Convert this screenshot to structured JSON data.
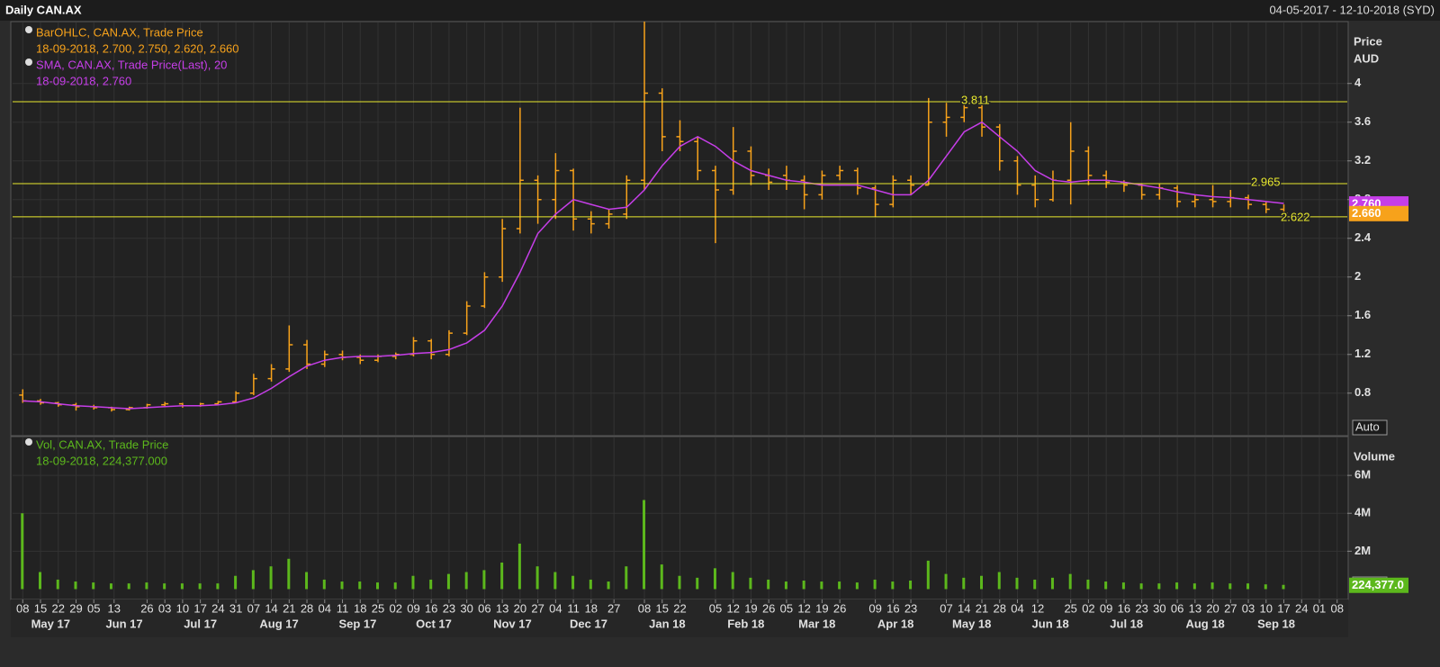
{
  "header": {
    "title": "Daily CAN.AX",
    "date_range": "04-05-2017 - 12-10-2018 (SYD)"
  },
  "chart_data": [
    {
      "type": "ohlc",
      "ylabel": "Price",
      "yunit": "AUD",
      "button": "Auto",
      "xlim": [
        "2017-05-04",
        "2018-10-12"
      ],
      "ylim": [
        0.37,
        4.63
      ],
      "yticks": [
        0.8,
        1.2,
        1.6,
        2,
        2.4,
        2.8,
        3.2,
        3.6,
        4
      ],
      "grid": true,
      "x": [
        "2017-05-08",
        "2017-05-15",
        "2017-05-22",
        "2017-05-29",
        "2017-06-05",
        "2017-06-12",
        "2017-06-19",
        "2017-06-26",
        "2017-07-03",
        "2017-07-10",
        "2017-07-17",
        "2017-07-24",
        "2017-07-31",
        "2017-08-07",
        "2017-08-14",
        "2017-08-21",
        "2017-08-28",
        "2017-09-04",
        "2017-09-11",
        "2017-09-18",
        "2017-09-25",
        "2017-10-02",
        "2017-10-09",
        "2017-10-16",
        "2017-10-23",
        "2017-10-30",
        "2017-11-06",
        "2017-11-13",
        "2017-11-20",
        "2017-11-27",
        "2017-12-04",
        "2017-12-11",
        "2017-12-18",
        "2017-12-25",
        "2018-01-01",
        "2018-01-08",
        "2018-01-15",
        "2018-01-22",
        "2018-01-29",
        "2018-02-05",
        "2018-02-12",
        "2018-02-19",
        "2018-02-26",
        "2018-03-05",
        "2018-03-12",
        "2018-03-19",
        "2018-03-26",
        "2018-04-02",
        "2018-04-09",
        "2018-04-16",
        "2018-04-23",
        "2018-04-30",
        "2018-05-07",
        "2018-05-14",
        "2018-05-21",
        "2018-05-28",
        "2018-06-04",
        "2018-06-11",
        "2018-06-18",
        "2018-06-25",
        "2018-07-02",
        "2018-07-09",
        "2018-07-16",
        "2018-07-23",
        "2018-07-30",
        "2018-08-06",
        "2018-08-13",
        "2018-08-20",
        "2018-08-27",
        "2018-09-03",
        "2018-09-10",
        "2018-09-17"
      ],
      "series": [
        {
          "name": "BarOHLC, CAN.AX, Trade Price",
          "info": "18-09-2018, 2.700, 2.750, 2.620, 2.660",
          "color": "#f7a21b",
          "open": [
            0.78,
            0.72,
            0.7,
            0.68,
            0.66,
            0.65,
            0.63,
            0.65,
            0.68,
            0.69,
            0.67,
            0.69,
            0.71,
            0.8,
            0.95,
            1.05,
            1.3,
            1.1,
            1.2,
            1.17,
            1.14,
            1.18,
            1.2,
            1.34,
            1.2,
            1.42,
            1.7,
            2.0,
            2.5,
            3.0,
            2.8,
            3.1,
            2.6,
            2.55,
            2.65,
            3.0,
            3.9,
            3.45,
            3.4,
            3.1,
            2.9,
            3.3,
            3.05,
            3.05,
            3.0,
            2.85,
            3.05,
            3.1,
            2.92,
            2.75,
            3.0,
            2.95,
            3.6,
            3.65,
            3.75,
            3.55,
            3.2,
            2.95,
            2.8,
            3.0,
            3.3,
            3.05,
            2.98,
            2.95,
            2.85,
            2.92,
            2.78,
            2.8,
            2.78,
            2.82,
            2.75,
            2.7
          ],
          "high": [
            0.84,
            0.74,
            0.71,
            0.7,
            0.68,
            0.66,
            0.66,
            0.69,
            0.71,
            0.7,
            0.7,
            0.72,
            0.82,
            1.0,
            1.1,
            1.5,
            1.35,
            1.24,
            1.24,
            1.2,
            1.2,
            1.22,
            1.38,
            1.36,
            1.45,
            1.75,
            2.05,
            2.6,
            3.75,
            3.05,
            3.28,
            3.12,
            2.68,
            2.7,
            3.05,
            4.7,
            3.95,
            3.62,
            3.45,
            3.15,
            3.55,
            3.35,
            3.12,
            3.15,
            3.05,
            3.1,
            3.15,
            3.13,
            2.95,
            3.05,
            3.05,
            3.85,
            3.8,
            3.81,
            3.8,
            3.58,
            3.25,
            3.05,
            3.1,
            3.6,
            3.35,
            3.1,
            3.0,
            2.97,
            2.96,
            2.95,
            2.85,
            2.95,
            2.9,
            2.85,
            2.78,
            2.75
          ],
          "low": [
            0.7,
            0.68,
            0.66,
            0.62,
            0.63,
            0.61,
            0.62,
            0.64,
            0.66,
            0.65,
            0.66,
            0.68,
            0.7,
            0.78,
            0.92,
            1.02,
            1.05,
            1.07,
            1.14,
            1.1,
            1.12,
            1.15,
            1.18,
            1.15,
            1.18,
            1.4,
            1.68,
            1.95,
            2.45,
            2.55,
            2.6,
            2.48,
            2.45,
            2.5,
            2.6,
            2.9,
            3.3,
            3.3,
            3.0,
            2.35,
            2.85,
            2.95,
            2.9,
            2.9,
            2.7,
            2.8,
            3.0,
            2.85,
            2.62,
            2.72,
            2.85,
            2.95,
            3.45,
            3.6,
            3.45,
            3.1,
            2.85,
            2.72,
            2.78,
            2.75,
            2.95,
            2.92,
            2.88,
            2.8,
            2.8,
            2.72,
            2.72,
            2.72,
            2.72,
            2.7,
            2.66,
            2.62
          ],
          "close": [
            0.72,
            0.7,
            0.68,
            0.66,
            0.65,
            0.63,
            0.65,
            0.68,
            0.69,
            0.67,
            0.69,
            0.71,
            0.8,
            0.95,
            1.05,
            1.3,
            1.1,
            1.2,
            1.17,
            1.14,
            1.18,
            1.2,
            1.34,
            1.2,
            1.42,
            1.7,
            2.0,
            2.5,
            3.0,
            2.8,
            3.1,
            2.6,
            2.55,
            2.65,
            3.0,
            3.9,
            3.45,
            3.4,
            3.1,
            2.9,
            3.3,
            3.05,
            2.98,
            3.0,
            2.85,
            3.05,
            3.1,
            2.92,
            2.75,
            3.0,
            2.95,
            3.6,
            3.65,
            3.75,
            3.55,
            3.2,
            2.95,
            2.8,
            3.0,
            3.3,
            3.05,
            2.98,
            2.95,
            2.85,
            2.92,
            2.78,
            2.8,
            2.78,
            2.82,
            2.75,
            2.7,
            2.66
          ]
        },
        {
          "name": "SMA, CAN.AX, Trade Price(Last),  20",
          "info": "18-09-2018, 2.760",
          "color": "#c63ee8",
          "values": [
            0.72,
            0.71,
            0.69,
            0.67,
            0.66,
            0.65,
            0.64,
            0.65,
            0.66,
            0.67,
            0.67,
            0.68,
            0.7,
            0.75,
            0.85,
            0.97,
            1.08,
            1.14,
            1.17,
            1.18,
            1.18,
            1.19,
            1.21,
            1.22,
            1.25,
            1.32,
            1.45,
            1.7,
            2.05,
            2.45,
            2.65,
            2.8,
            2.75,
            2.7,
            2.72,
            2.9,
            3.15,
            3.35,
            3.45,
            3.35,
            3.2,
            3.1,
            3.05,
            3.0,
            2.98,
            2.95,
            2.95,
            2.95,
            2.9,
            2.85,
            2.85,
            3.0,
            3.25,
            3.5,
            3.6,
            3.45,
            3.3,
            3.1,
            3.0,
            2.98,
            3.0,
            3.0,
            2.98,
            2.95,
            2.92,
            2.88,
            2.85,
            2.83,
            2.82,
            2.8,
            2.78,
            2.76
          ]
        }
      ],
      "levels": [
        3.811,
        2.965,
        2.622
      ],
      "level_color": "#e8e82e",
      "tags": [
        {
          "value": 2.76,
          "label": "2.760",
          "color": "#c63ee8"
        },
        {
          "value": 2.66,
          "label": "2.660",
          "color": "#f7a21b"
        }
      ]
    },
    {
      "type": "bar",
      "ylabel": "Volume",
      "button": "Auto",
      "xlim": [
        "2017-05-04",
        "2018-10-12"
      ],
      "ylim": [
        -500000,
        8000000
      ],
      "yticks": [
        {
          "value": 2000000,
          "label": "2M"
        },
        {
          "value": 4000000,
          "label": "4M"
        },
        {
          "value": 6000000,
          "label": "6M"
        }
      ],
      "grid": true,
      "x": [
        "2017-05-08",
        "2017-05-15",
        "2017-05-22",
        "2017-05-29",
        "2017-06-05",
        "2017-06-12",
        "2017-06-19",
        "2017-06-26",
        "2017-07-03",
        "2017-07-10",
        "2017-07-17",
        "2017-07-24",
        "2017-07-31",
        "2017-08-07",
        "2017-08-14",
        "2017-08-21",
        "2017-08-28",
        "2017-09-04",
        "2017-09-11",
        "2017-09-18",
        "2017-09-25",
        "2017-10-02",
        "2017-10-09",
        "2017-10-16",
        "2017-10-23",
        "2017-10-30",
        "2017-11-06",
        "2017-11-13",
        "2017-11-20",
        "2017-11-27",
        "2017-12-04",
        "2017-12-11",
        "2017-12-18",
        "2017-12-25",
        "2018-01-01",
        "2018-01-08",
        "2018-01-15",
        "2018-01-22",
        "2018-01-29",
        "2018-02-05",
        "2018-02-12",
        "2018-02-19",
        "2018-02-26",
        "2018-03-05",
        "2018-03-12",
        "2018-03-19",
        "2018-03-26",
        "2018-04-02",
        "2018-04-09",
        "2018-04-16",
        "2018-04-23",
        "2018-04-30",
        "2018-05-07",
        "2018-05-14",
        "2018-05-21",
        "2018-05-28",
        "2018-06-04",
        "2018-06-11",
        "2018-06-18",
        "2018-06-25",
        "2018-07-02",
        "2018-07-09",
        "2018-07-16",
        "2018-07-23",
        "2018-07-30",
        "2018-08-06",
        "2018-08-13",
        "2018-08-20",
        "2018-08-27",
        "2018-09-03",
        "2018-09-10",
        "2018-09-17"
      ],
      "series": [
        {
          "name": "Vol, CAN.AX, Trade Price",
          "info": "18-09-2018, 224,377.000",
          "color": "#5cb81c",
          "values": [
            4000000,
            900000,
            500000,
            400000,
            350000,
            300000,
            300000,
            350000,
            300000,
            300000,
            300000,
            300000,
            700000,
            1000000,
            1200000,
            1600000,
            900000,
            500000,
            400000,
            400000,
            350000,
            350000,
            700000,
            500000,
            800000,
            900000,
            1000000,
            1400000,
            2400000,
            1200000,
            900000,
            700000,
            500000,
            400000,
            1200000,
            4700000,
            1300000,
            700000,
            600000,
            1100000,
            900000,
            600000,
            500000,
            400000,
            450000,
            400000,
            400000,
            350000,
            500000,
            400000,
            450000,
            1500000,
            800000,
            600000,
            700000,
            900000,
            600000,
            500000,
            600000,
            800000,
            500000,
            400000,
            350000,
            300000,
            300000,
            350000,
            300000,
            350000,
            300000,
            300000,
            250000,
            224377
          ]
        }
      ],
      "tags": [
        {
          "value": 224377,
          "label": "224,377.0",
          "color": "#5cb81c"
        }
      ],
      "xticks": [
        {
          "value": "2017-05-08",
          "label": "08"
        },
        {
          "value": "2017-05-15",
          "label": "15"
        },
        {
          "value": "2017-05-22",
          "label": "22"
        },
        {
          "value": "2017-05-29",
          "label": "29"
        },
        {
          "value": "2017-06-05",
          "label": "05"
        },
        {
          "value": "2017-06-13",
          "label": "13"
        },
        {
          "value": "2017-06-26",
          "label": "26"
        },
        {
          "value": "2017-07-03",
          "label": "03"
        },
        {
          "value": "2017-07-10",
          "label": "10"
        },
        {
          "value": "2017-07-17",
          "label": "17"
        },
        {
          "value": "2017-07-24",
          "label": "24"
        },
        {
          "value": "2017-07-31",
          "label": "31"
        },
        {
          "value": "2017-08-07",
          "label": "07"
        },
        {
          "value": "2017-08-14",
          "label": "14"
        },
        {
          "value": "2017-08-21",
          "label": "21"
        },
        {
          "value": "2017-08-28",
          "label": "28"
        },
        {
          "value": "2017-09-04",
          "label": "04"
        },
        {
          "value": "2017-09-11",
          "label": "11"
        },
        {
          "value": "2017-09-18",
          "label": "18"
        },
        {
          "value": "2017-09-25",
          "label": "25"
        },
        {
          "value": "2017-10-02",
          "label": "02"
        },
        {
          "value": "2017-10-09",
          "label": "09"
        },
        {
          "value": "2017-10-16",
          "label": "16"
        },
        {
          "value": "2017-10-23",
          "label": "23"
        },
        {
          "value": "2017-10-30",
          "label": "30"
        },
        {
          "value": "2017-11-06",
          "label": "06"
        },
        {
          "value": "2017-11-13",
          "label": "13"
        },
        {
          "value": "2017-11-20",
          "label": "20"
        },
        {
          "value": "2017-11-27",
          "label": "27"
        },
        {
          "value": "2017-12-04",
          "label": "04"
        },
        {
          "value": "2017-12-11",
          "label": "11"
        },
        {
          "value": "2017-12-18",
          "label": "18"
        },
        {
          "value": "2017-12-27",
          "label": "27"
        },
        {
          "value": "2018-01-08",
          "label": "08"
        },
        {
          "value": "2018-01-15",
          "label": "15"
        },
        {
          "value": "2018-01-22",
          "label": "22"
        },
        {
          "value": "2018-02-05",
          "label": "05"
        },
        {
          "value": "2018-02-12",
          "label": "12"
        },
        {
          "value": "2018-02-19",
          "label": "19"
        },
        {
          "value": "2018-02-26",
          "label": "26"
        },
        {
          "value": "2018-03-05",
          "label": "05"
        },
        {
          "value": "2018-03-12",
          "label": "12"
        },
        {
          "value": "2018-03-19",
          "label": "19"
        },
        {
          "value": "2018-03-26",
          "label": "26"
        },
        {
          "value": "2018-04-09",
          "label": "09"
        },
        {
          "value": "2018-04-16",
          "label": "16"
        },
        {
          "value": "2018-04-23",
          "label": "23"
        },
        {
          "value": "2018-05-07",
          "label": "07"
        },
        {
          "value": "2018-05-14",
          "label": "14"
        },
        {
          "value": "2018-05-21",
          "label": "21"
        },
        {
          "value": "2018-05-28",
          "label": "28"
        },
        {
          "value": "2018-06-04",
          "label": "04"
        },
        {
          "value": "2018-06-12",
          "label": "12"
        },
        {
          "value": "2018-06-25",
          "label": "25"
        },
        {
          "value": "2018-07-02",
          "label": "02"
        },
        {
          "value": "2018-07-09",
          "label": "09"
        },
        {
          "value": "2018-07-16",
          "label": "16"
        },
        {
          "value": "2018-07-23",
          "label": "23"
        },
        {
          "value": "2018-07-30",
          "label": "30"
        },
        {
          "value": "2018-08-06",
          "label": "06"
        },
        {
          "value": "2018-08-13",
          "label": "13"
        },
        {
          "value": "2018-08-20",
          "label": "20"
        },
        {
          "value": "2018-08-27",
          "label": "27"
        },
        {
          "value": "2018-09-03",
          "label": "03"
        },
        {
          "value": "2018-09-10",
          "label": "10"
        },
        {
          "value": "2018-09-17",
          "label": "17"
        },
        {
          "value": "2018-09-24",
          "label": "24"
        },
        {
          "value": "2018-10-01",
          "label": "01"
        },
        {
          "value": "2018-10-08",
          "label": "08"
        }
      ],
      "months": [
        {
          "value": "2017-05-19",
          "label": "May 17"
        },
        {
          "value": "2017-06-17",
          "label": "Jun 17"
        },
        {
          "value": "2017-07-17",
          "label": "Jul 17"
        },
        {
          "value": "2017-08-17",
          "label": "Aug 17"
        },
        {
          "value": "2017-09-17",
          "label": "Sep 17"
        },
        {
          "value": "2017-10-17",
          "label": "Oct 17"
        },
        {
          "value": "2017-11-17",
          "label": "Nov 17"
        },
        {
          "value": "2017-12-17",
          "label": "Dec 17"
        },
        {
          "value": "2018-01-17",
          "label": "Jan 18"
        },
        {
          "value": "2018-02-17",
          "label": "Feb 18"
        },
        {
          "value": "2018-03-17",
          "label": "Mar 18"
        },
        {
          "value": "2018-04-17",
          "label": "Apr 18"
        },
        {
          "value": "2018-05-17",
          "label": "May 18"
        },
        {
          "value": "2018-06-17",
          "label": "Jun 18"
        },
        {
          "value": "2018-07-17",
          "label": "Jul 18"
        },
        {
          "value": "2018-08-17",
          "label": "Aug 18"
        },
        {
          "value": "2018-09-14",
          "label": "Sep 18"
        }
      ]
    }
  ]
}
